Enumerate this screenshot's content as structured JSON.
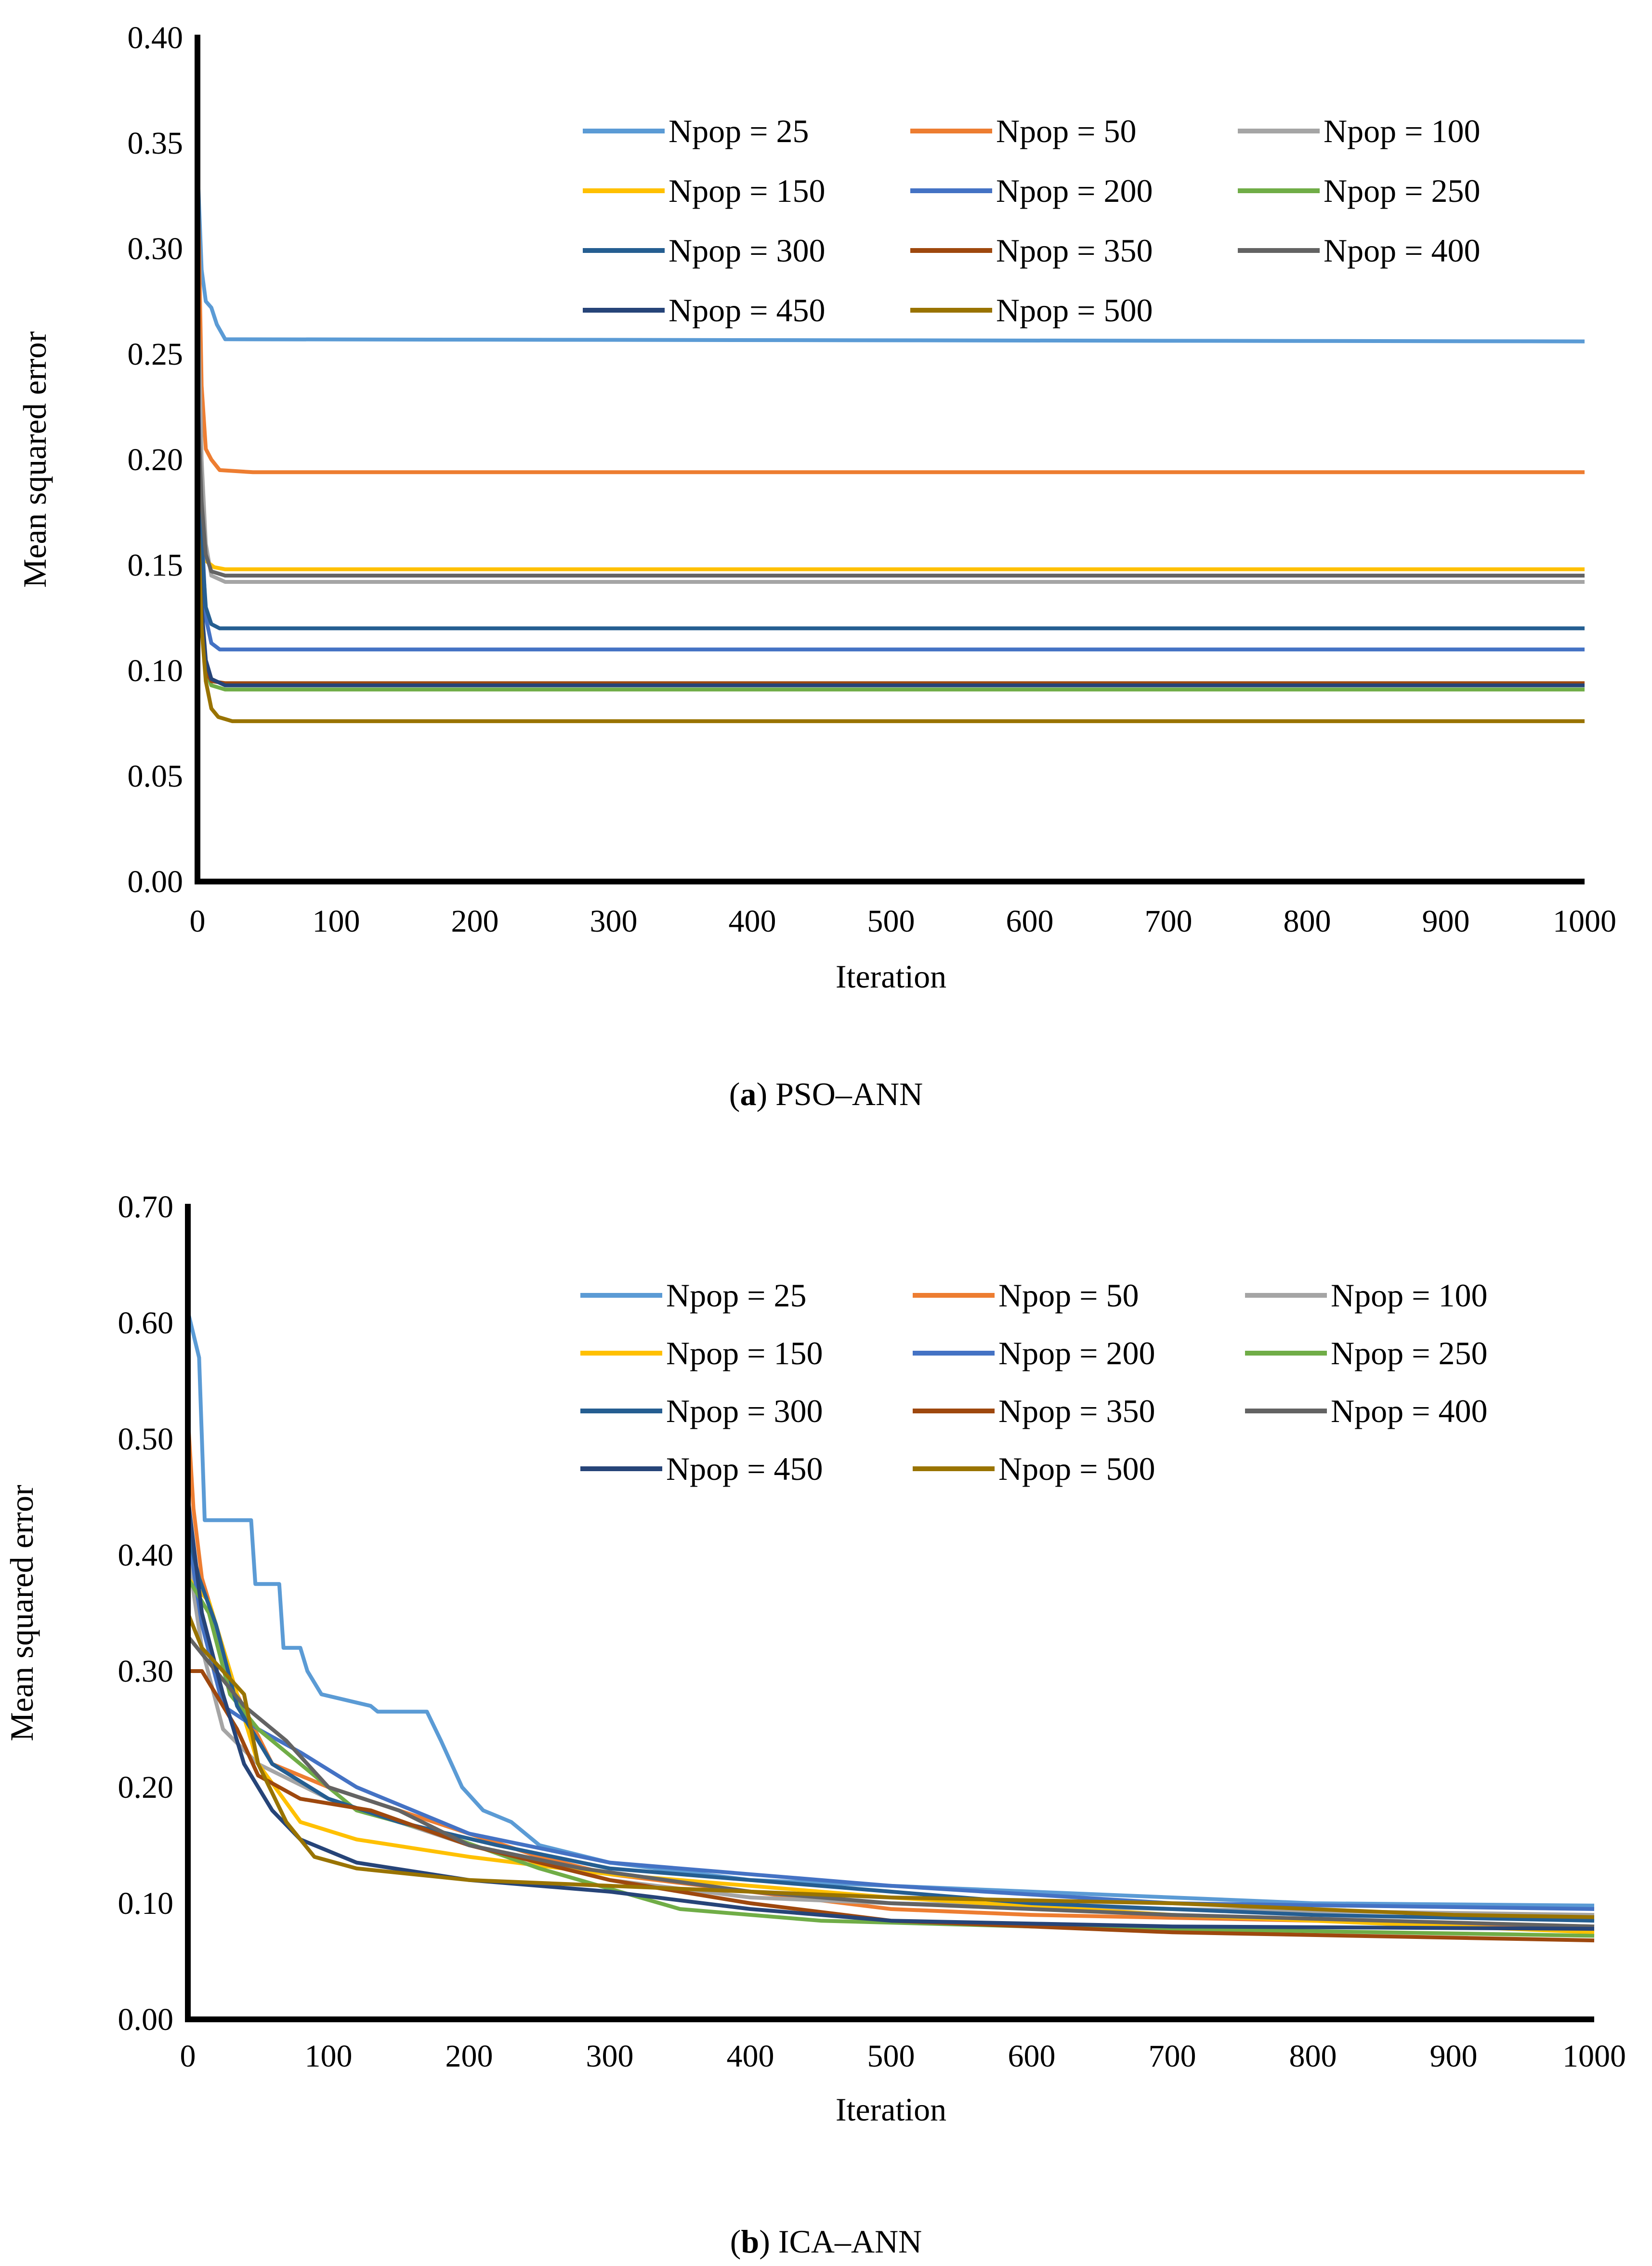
{
  "chart_data": [
    {
      "type": "line",
      "caption_letter": "a",
      "caption_rest": "PSO–ANN",
      "xlabel": "Iteration",
      "ylabel": "Mean squared error",
      "xlim": [
        0,
        1000
      ],
      "ylim": [
        0,
        0.4
      ],
      "xticks": [
        "0",
        "100",
        "200",
        "300",
        "400",
        "500",
        "600",
        "700",
        "800",
        "900",
        "1000"
      ],
      "yticks": [
        "0.00",
        "0.05",
        "0.10",
        "0.15",
        "0.20",
        "0.25",
        "0.30",
        "0.35",
        "0.40"
      ],
      "grid": false,
      "legend_position": "top-right",
      "series": [
        {
          "name": "Npop = 25",
          "color": "#5B9BD5",
          "points": [
            [
              0,
              0.34
            ],
            [
              3,
              0.29
            ],
            [
              6,
              0.275
            ],
            [
              10,
              0.272
            ],
            [
              14,
              0.264
            ],
            [
              20,
              0.257
            ],
            [
              1000,
              0.256
            ]
          ]
        },
        {
          "name": "Npop = 50",
          "color": "#ED7D31",
          "points": [
            [
              0,
              0.34
            ],
            [
              3,
              0.235
            ],
            [
              6,
              0.205
            ],
            [
              10,
              0.2
            ],
            [
              16,
              0.195
            ],
            [
              40,
              0.194
            ],
            [
              1000,
              0.194
            ]
          ]
        },
        {
          "name": "Npop = 100",
          "color": "#A5A5A5",
          "points": [
            [
              0,
              0.285
            ],
            [
              3,
              0.2
            ],
            [
              6,
              0.16
            ],
            [
              10,
              0.145
            ],
            [
              20,
              0.142
            ],
            [
              1000,
              0.142
            ]
          ]
        },
        {
          "name": "Npop = 150",
          "color": "#FFC000",
          "points": [
            [
              0,
              0.18
            ],
            [
              3,
              0.16
            ],
            [
              6,
              0.152
            ],
            [
              12,
              0.149
            ],
            [
              20,
              0.148
            ],
            [
              1000,
              0.148
            ]
          ]
        },
        {
          "name": "Npop = 200",
          "color": "#4472C4",
          "points": [
            [
              0,
              0.24
            ],
            [
              3,
              0.17
            ],
            [
              6,
              0.125
            ],
            [
              10,
              0.113
            ],
            [
              16,
              0.11
            ],
            [
              1000,
              0.11
            ]
          ]
        },
        {
          "name": "Npop = 250",
          "color": "#70AD47",
          "points": [
            [
              0,
              0.18
            ],
            [
              3,
              0.12
            ],
            [
              6,
              0.1
            ],
            [
              10,
              0.093
            ],
            [
              20,
              0.091
            ],
            [
              1000,
              0.091
            ]
          ]
        },
        {
          "name": "Npop = 300",
          "color": "#255E91",
          "points": [
            [
              0,
              0.23
            ],
            [
              3,
              0.16
            ],
            [
              6,
              0.13
            ],
            [
              10,
              0.122
            ],
            [
              16,
              0.12
            ],
            [
              1000,
              0.12
            ]
          ]
        },
        {
          "name": "Npop = 350",
          "color": "#9E480E",
          "points": [
            [
              0,
              0.15
            ],
            [
              3,
              0.12
            ],
            [
              6,
              0.1
            ],
            [
              10,
              0.095
            ],
            [
              20,
              0.094
            ],
            [
              1000,
              0.094
            ]
          ]
        },
        {
          "name": "Npop = 400",
          "color": "#636363",
          "points": [
            [
              0,
              0.23
            ],
            [
              3,
              0.18
            ],
            [
              6,
              0.155
            ],
            [
              10,
              0.147
            ],
            [
              20,
              0.145
            ],
            [
              1000,
              0.145
            ]
          ]
        },
        {
          "name": "Npop = 450",
          "color": "#264478",
          "points": [
            [
              0,
              0.18
            ],
            [
              3,
              0.13
            ],
            [
              6,
              0.105
            ],
            [
              10,
              0.096
            ],
            [
              20,
              0.093
            ],
            [
              1000,
              0.093
            ]
          ]
        },
        {
          "name": "Npop = 500",
          "color": "#997300",
          "points": [
            [
              0,
              0.18
            ],
            [
              3,
              0.12
            ],
            [
              6,
              0.095
            ],
            [
              10,
              0.082
            ],
            [
              15,
              0.078
            ],
            [
              25,
              0.076
            ],
            [
              1000,
              0.076
            ]
          ]
        }
      ]
    },
    {
      "type": "line",
      "caption_letter": "b",
      "caption_rest": "ICA–ANN",
      "xlabel": "Iteration",
      "ylabel": "Mean squared error",
      "xlim": [
        0,
        1000
      ],
      "ylim": [
        0,
        0.7
      ],
      "xticks": [
        "0",
        "100",
        "200",
        "300",
        "400",
        "500",
        "600",
        "700",
        "800",
        "900",
        "1000"
      ],
      "yticks": [
        "0.00",
        "0.10",
        "0.20",
        "0.30",
        "0.40",
        "0.50",
        "0.60",
        "0.70"
      ],
      "grid": false,
      "legend_position": "top-right",
      "series": [
        {
          "name": "Npop = 25",
          "color": "#5B9BD5",
          "points": [
            [
              0,
              0.61
            ],
            [
              8,
              0.57
            ],
            [
              12,
              0.43
            ],
            [
              45,
              0.43
            ],
            [
              48,
              0.375
            ],
            [
              65,
              0.375
            ],
            [
              68,
              0.32
            ],
            [
              80,
              0.32
            ],
            [
              85,
              0.3
            ],
            [
              95,
              0.28
            ],
            [
              130,
              0.27
            ],
            [
              135,
              0.265
            ],
            [
              170,
              0.265
            ],
            [
              180,
              0.24
            ],
            [
              195,
              0.2
            ],
            [
              210,
              0.18
            ],
            [
              230,
              0.17
            ],
            [
              250,
              0.15
            ],
            [
              300,
              0.135
            ],
            [
              400,
              0.12
            ],
            [
              600,
              0.11
            ],
            [
              800,
              0.1
            ],
            [
              1000,
              0.098
            ]
          ]
        },
        {
          "name": "Npop = 50",
          "color": "#ED7D31",
          "points": [
            [
              0,
              0.52
            ],
            [
              4,
              0.44
            ],
            [
              10,
              0.38
            ],
            [
              20,
              0.34
            ],
            [
              35,
              0.28
            ],
            [
              60,
              0.22
            ],
            [
              100,
              0.2
            ],
            [
              150,
              0.18
            ],
            [
              200,
              0.16
            ],
            [
              250,
              0.14
            ],
            [
              300,
              0.125
            ],
            [
              400,
              0.11
            ],
            [
              500,
              0.095
            ],
            [
              600,
              0.09
            ],
            [
              800,
              0.085
            ],
            [
              1000,
              0.08
            ]
          ]
        },
        {
          "name": "Npop = 100",
          "color": "#A5A5A5",
          "points": [
            [
              0,
              0.4
            ],
            [
              10,
              0.32
            ],
            [
              25,
              0.25
            ],
            [
              50,
              0.22
            ],
            [
              100,
              0.19
            ],
            [
              150,
              0.17
            ],
            [
              200,
              0.15
            ],
            [
              300,
              0.12
            ],
            [
              400,
              0.105
            ],
            [
              500,
              0.1
            ],
            [
              700,
              0.095
            ],
            [
              1000,
              0.09
            ]
          ]
        },
        {
          "name": "Npop = 150",
          "color": "#FFC000",
          "points": [
            [
              0,
              0.38
            ],
            [
              15,
              0.36
            ],
            [
              30,
              0.3
            ],
            [
              50,
              0.22
            ],
            [
              80,
              0.17
            ],
            [
              120,
              0.155
            ],
            [
              200,
              0.14
            ],
            [
              300,
              0.125
            ],
            [
              400,
              0.115
            ],
            [
              500,
              0.105
            ],
            [
              700,
              0.09
            ],
            [
              1000,
              0.075
            ]
          ]
        },
        {
          "name": "Npop = 200",
          "color": "#4472C4",
          "points": [
            [
              0,
              0.42
            ],
            [
              10,
              0.34
            ],
            [
              25,
              0.27
            ],
            [
              50,
              0.25
            ],
            [
              80,
              0.23
            ],
            [
              120,
              0.2
            ],
            [
              160,
              0.18
            ],
            [
              200,
              0.16
            ],
            [
              300,
              0.135
            ],
            [
              400,
              0.125
            ],
            [
              500,
              0.115
            ],
            [
              700,
              0.1
            ],
            [
              1000,
              0.095
            ]
          ]
        },
        {
          "name": "Npop = 250",
          "color": "#70AD47",
          "points": [
            [
              0,
              0.38
            ],
            [
              15,
              0.35
            ],
            [
              30,
              0.28
            ],
            [
              50,
              0.25
            ],
            [
              80,
              0.22
            ],
            [
              120,
              0.18
            ],
            [
              180,
              0.16
            ],
            [
              250,
              0.13
            ],
            [
              350,
              0.095
            ],
            [
              450,
              0.085
            ],
            [
              600,
              0.08
            ],
            [
              1000,
              0.072
            ]
          ]
        },
        {
          "name": "Npop = 300",
          "color": "#255E91",
          "points": [
            [
              0,
              0.42
            ],
            [
              8,
              0.38
            ],
            [
              20,
              0.34
            ],
            [
              35,
              0.27
            ],
            [
              60,
              0.22
            ],
            [
              100,
              0.19
            ],
            [
              150,
              0.17
            ],
            [
              220,
              0.15
            ],
            [
              300,
              0.13
            ],
            [
              400,
              0.12
            ],
            [
              500,
              0.11
            ],
            [
              600,
              0.1
            ],
            [
              800,
              0.09
            ],
            [
              1000,
              0.085
            ]
          ]
        },
        {
          "name": "Npop = 350",
          "color": "#9E480E",
          "points": [
            [
              0,
              0.3
            ],
            [
              10,
              0.3
            ],
            [
              20,
              0.28
            ],
            [
              35,
              0.25
            ],
            [
              50,
              0.21
            ],
            [
              80,
              0.19
            ],
            [
              130,
              0.18
            ],
            [
              200,
              0.15
            ],
            [
              300,
              0.12
            ],
            [
              400,
              0.1
            ],
            [
              500,
              0.085
            ],
            [
              700,
              0.075
            ],
            [
              1000,
              0.068
            ]
          ]
        },
        {
          "name": "Npop = 400",
          "color": "#636363",
          "points": [
            [
              0,
              0.33
            ],
            [
              20,
              0.3
            ],
            [
              40,
              0.27
            ],
            [
              70,
              0.24
            ],
            [
              100,
              0.2
            ],
            [
              150,
              0.18
            ],
            [
              200,
              0.15
            ],
            [
              280,
              0.13
            ],
            [
              400,
              0.11
            ],
            [
              500,
              0.1
            ],
            [
              700,
              0.09
            ],
            [
              1000,
              0.08
            ]
          ]
        },
        {
          "name": "Npop = 450",
          "color": "#264478",
          "points": [
            [
              0,
              0.45
            ],
            [
              10,
              0.35
            ],
            [
              25,
              0.28
            ],
            [
              40,
              0.22
            ],
            [
              60,
              0.18
            ],
            [
              80,
              0.155
            ],
            [
              120,
              0.135
            ],
            [
              200,
              0.12
            ],
            [
              300,
              0.11
            ],
            [
              400,
              0.095
            ],
            [
              500,
              0.085
            ],
            [
              700,
              0.08
            ],
            [
              1000,
              0.078
            ]
          ]
        },
        {
          "name": "Npop = 500",
          "color": "#997300",
          "points": [
            [
              0,
              0.35
            ],
            [
              10,
              0.32
            ],
            [
              25,
              0.3
            ],
            [
              40,
              0.28
            ],
            [
              50,
              0.22
            ],
            [
              70,
              0.17
            ],
            [
              90,
              0.14
            ],
            [
              120,
              0.13
            ],
            [
              200,
              0.12
            ],
            [
              300,
              0.115
            ],
            [
              400,
              0.11
            ],
            [
              500,
              0.105
            ],
            [
              700,
              0.1
            ],
            [
              900,
              0.09
            ],
            [
              1000,
              0.088
            ]
          ]
        }
      ]
    }
  ]
}
